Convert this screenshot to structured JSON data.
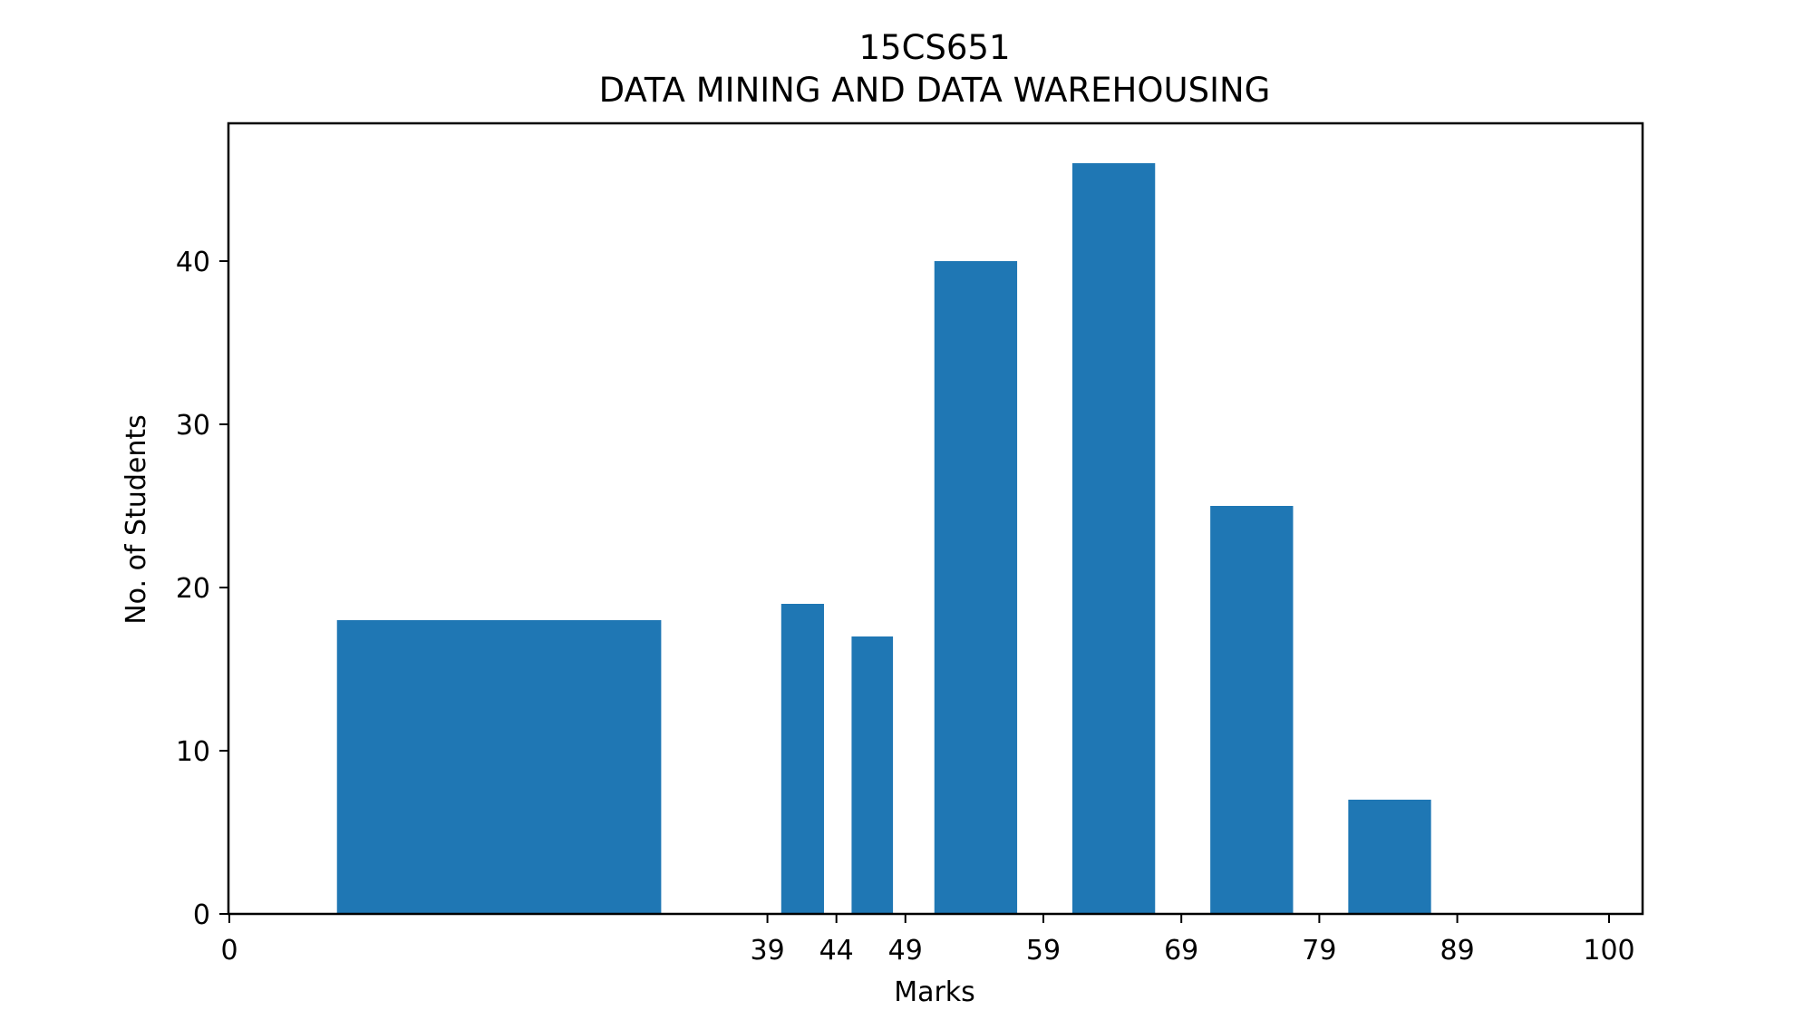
{
  "chart_data": {
    "type": "bar",
    "title": "15CS651",
    "subtitle": "DATA MINING AND DATA WAREHOUSING",
    "xlabel": "Marks",
    "ylabel": "No. of Students",
    "xlim": [
      0,
      102.5
    ],
    "ylim": [
      0,
      48.3
    ],
    "xticks": [
      0,
      39,
      44,
      49,
      59,
      69,
      79,
      89,
      100
    ],
    "yticks": [
      0,
      10,
      20,
      30,
      40
    ],
    "grid": false,
    "color": "#1f77b4",
    "bars": [
      {
        "x0": 7.8,
        "x1": 31.3,
        "value": 18
      },
      {
        "x0": 40.0,
        "x1": 43.1,
        "value": 19
      },
      {
        "x0": 45.1,
        "x1": 48.1,
        "value": 17
      },
      {
        "x0": 51.1,
        "x1": 57.1,
        "value": 40
      },
      {
        "x0": 61.1,
        "x1": 67.1,
        "value": 46
      },
      {
        "x0": 71.1,
        "x1": 77.1,
        "value": 25
      },
      {
        "x0": 81.1,
        "x1": 87.1,
        "value": 7
      }
    ]
  }
}
